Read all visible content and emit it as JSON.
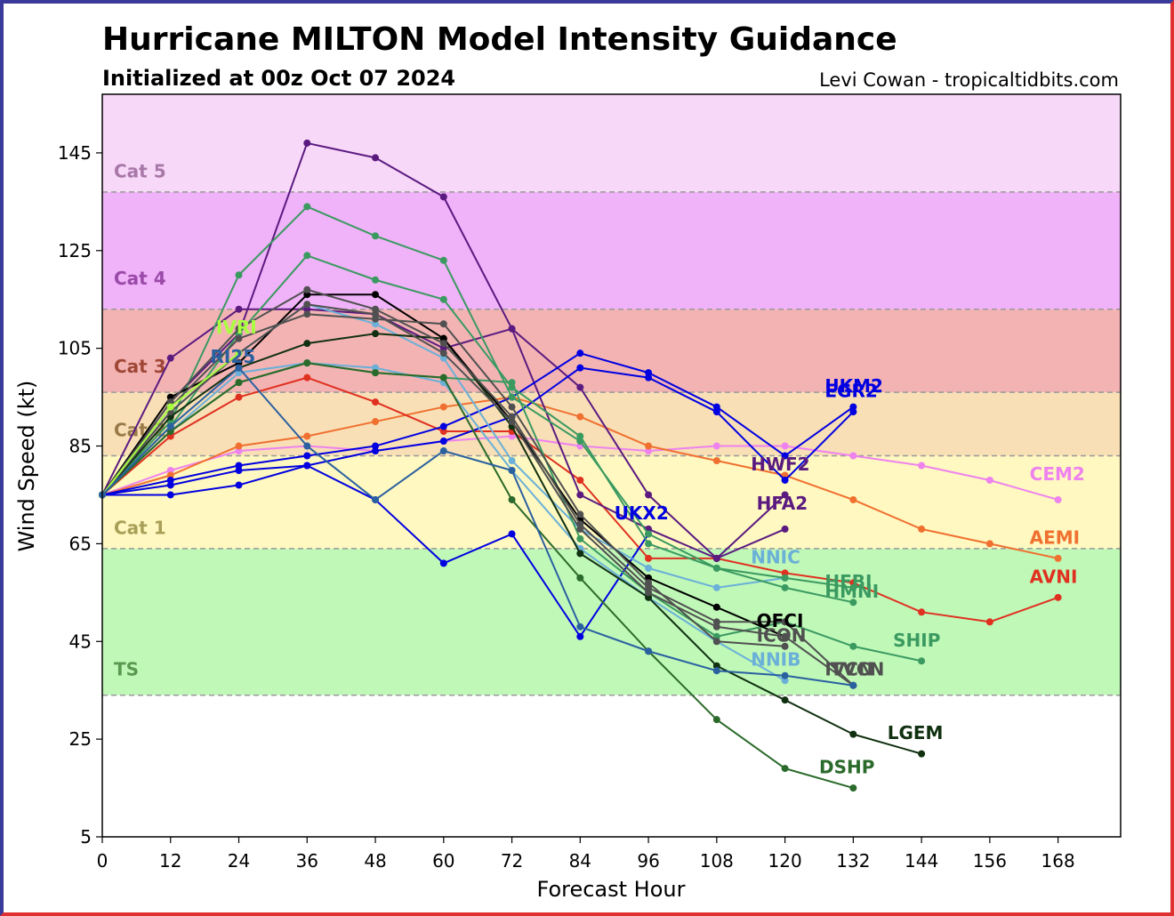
{
  "colors": {
    "frame_left": "#3a3a9a",
    "frame_right": "#e03030"
  },
  "header": {
    "title": "Hurricane MILTON Model Intensity Guidance",
    "subtitle": "Initialized at 00z Oct 07 2024",
    "credit": "Levi Cowan - tropicaltidbits.com"
  },
  "chart_data": {
    "type": "line",
    "title": "Hurricane MILTON Model Intensity Guidance",
    "subtitle": "Initialized at 00z Oct 07 2024",
    "xlabel": "Forecast Hour",
    "ylabel": "Wind Speed (kt)",
    "xlim": [
      0,
      179
    ],
    "ylim": [
      5,
      157
    ],
    "xticks": [
      0,
      12,
      24,
      36,
      48,
      60,
      72,
      84,
      96,
      108,
      120,
      132,
      144,
      156,
      168
    ],
    "yticks": [
      5,
      25,
      45,
      65,
      85,
      105,
      125,
      145
    ],
    "grid": false,
    "bands": [
      {
        "label": "TS",
        "from": 34,
        "to": 64,
        "color": "#c0f8b8",
        "text_color": "#5a9a50",
        "label_y": 38
      },
      {
        "label": "Cat 1",
        "from": 64,
        "to": 83,
        "color": "#fff8c0",
        "text_color": "#a8a058",
        "label_y": 67
      },
      {
        "label": "Cat 2",
        "from": 83,
        "to": 96,
        "color": "#f8dfb6",
        "text_color": "#9a7a48",
        "label_y": 87
      },
      {
        "label": "Cat 3",
        "from": 96,
        "to": 113,
        "color": "#f3b3b3",
        "text_color": "#a04838",
        "label_y": 100
      },
      {
        "label": "Cat 4",
        "from": 113,
        "to": 137,
        "color": "#f0b2f8",
        "text_color": "#9a4aa8",
        "label_y": 118
      },
      {
        "label": "Cat 5",
        "from": 137,
        "to": 157,
        "color": "#f8d8f8",
        "text_color": "#a878a8",
        "label_y": 140
      }
    ],
    "series": [
      {
        "name": "CEM2",
        "color": "#ee82ee",
        "label_at": [
          163,
          78
        ],
        "x": [
          0,
          12,
          24,
          36,
          48,
          60,
          72,
          84,
          96,
          108,
          120,
          132,
          144,
          156,
          168
        ],
        "y": [
          75,
          80,
          84,
          85,
          84,
          86,
          87,
          85,
          84,
          85,
          85,
          83,
          81,
          78,
          74
        ]
      },
      {
        "name": "AEMI",
        "color": "#f07030",
        "label_at": [
          163,
          65
        ],
        "x": [
          0,
          12,
          24,
          36,
          48,
          60,
          72,
          84,
          96,
          108,
          120,
          132,
          144,
          156,
          168
        ],
        "y": [
          75,
          79,
          85,
          87,
          90,
          93,
          95,
          91,
          85,
          82,
          79,
          74,
          68,
          65,
          62
        ]
      },
      {
        "name": "AVNI",
        "color": "#e03020",
        "label_at": [
          163,
          57
        ],
        "x": [
          0,
          12,
          24,
          36,
          48,
          60,
          72,
          84,
          96,
          108,
          120,
          132,
          144,
          156,
          168
        ],
        "y": [
          75,
          87,
          95,
          99,
          94,
          88,
          88,
          78,
          62,
          62,
          59,
          57,
          51,
          49,
          54
        ]
      },
      {
        "name": "HWF2",
        "color": "#5a1a80",
        "label_at": [
          114,
          80
        ],
        "x": [
          0,
          12,
          24,
          36,
          48,
          60,
          72,
          84,
          96,
          108,
          120
        ],
        "y": [
          75,
          103,
          113,
          113,
          112,
          105,
          109,
          97,
          75,
          62,
          75
        ]
      },
      {
        "name": "HFA2",
        "color": "#5a1a80",
        "label_at": [
          115,
          72
        ],
        "x": [
          0,
          12,
          24,
          36,
          48,
          60,
          72,
          84,
          96,
          108,
          120
        ],
        "y": [
          75,
          94,
          108,
          147,
          144,
          136,
          109,
          75,
          68,
          62,
          68
        ]
      },
      {
        "name": "UKM2",
        "color": "#0000e0",
        "label_at": [
          127,
          96
        ],
        "x": [
          0,
          12,
          24,
          36,
          48,
          60,
          72,
          84,
          96,
          108,
          120,
          132
        ],
        "y": [
          75,
          78,
          81,
          83,
          85,
          89,
          95,
          104,
          100,
          93,
          83,
          93
        ]
      },
      {
        "name": "EGR2",
        "color": "#0000e0",
        "label_at": [
          127,
          95
        ],
        "x": [
          0,
          12,
          24,
          36,
          48,
          60,
          72,
          84,
          96,
          108,
          120,
          132
        ],
        "y": [
          75,
          77,
          80,
          81,
          84,
          86,
          91,
          101,
          99,
          92,
          78,
          92
        ]
      },
      {
        "name": "UKX2",
        "color": "#0000e0",
        "label_at": [
          90,
          70
        ],
        "x": [
          0,
          12,
          24,
          36,
          48,
          60,
          72,
          84,
          96
        ],
        "y": [
          75,
          75,
          77,
          81,
          74,
          61,
          67,
          46,
          67
        ]
      },
      {
        "name": "NNIC",
        "color": "#6ab0d8",
        "label_at": [
          114,
          61
        ],
        "x": [
          0,
          12,
          24,
          36,
          48,
          60,
          72,
          84,
          96,
          108,
          120
        ],
        "y": [
          75,
          92,
          104,
          114,
          110,
          103,
          82,
          68,
          60,
          56,
          58
        ]
      },
      {
        "name": "NNIB",
        "color": "#6ab0d8",
        "label_at": [
          114,
          40
        ],
        "x": [
          0,
          12,
          24,
          36,
          48,
          60,
          72,
          84,
          96,
          108,
          120
        ],
        "y": [
          75,
          88,
          100,
          102,
          101,
          98,
          80,
          64,
          54,
          45,
          37
        ]
      },
      {
        "name": "HFBI",
        "color": "#3a9a60",
        "label_at": [
          127,
          56
        ],
        "x": [
          0,
          12,
          24,
          36,
          48,
          60,
          72,
          84,
          96,
          108,
          120,
          132
        ],
        "y": [
          75,
          90,
          120,
          134,
          128,
          123,
          95,
          86,
          67,
          60,
          58,
          56
        ]
      },
      {
        "name": "HMNI",
        "color": "#3a9a60",
        "label_at": [
          127,
          54
        ],
        "x": [
          0,
          12,
          24,
          36,
          48,
          60,
          72,
          84,
          96,
          108,
          120,
          132
        ],
        "y": [
          75,
          89,
          108,
          124,
          119,
          115,
          97,
          87,
          65,
          60,
          56,
          53
        ]
      },
      {
        "name": "SHIP",
        "color": "#3a9a60",
        "label_at": [
          139,
          44
        ],
        "x": [
          0,
          12,
          24,
          36,
          48,
          60,
          72,
          84,
          96,
          108,
          120,
          132,
          144
        ],
        "y": [
          75,
          88,
          98,
          102,
          100,
          99,
          98,
          66,
          55,
          46,
          49,
          44,
          41
        ]
      },
      {
        "name": "DSHP",
        "color": "#2a6a2a",
        "label_at": [
          126,
          18
        ],
        "x": [
          0,
          12,
          24,
          36,
          48,
          60,
          72,
          84,
          96,
          108,
          120,
          132
        ],
        "y": [
          75,
          88,
          98,
          102,
          100,
          99,
          74,
          58,
          43,
          29,
          19,
          15
        ]
      },
      {
        "name": "LGEM",
        "color": "#103010",
        "label_at": [
          138,
          25
        ],
        "x": [
          0,
          12,
          24,
          36,
          48,
          60,
          72,
          84,
          96,
          108,
          120,
          132,
          144
        ],
        "y": [
          75,
          91,
          101,
          106,
          108,
          107,
          89,
          63,
          54,
          40,
          33,
          26,
          22
        ]
      },
      {
        "name": "OFCI",
        "color": "#000000",
        "label_at": [
          115,
          48
        ],
        "x": [
          0,
          12,
          24,
          36,
          48,
          60,
          72,
          84,
          96,
          108,
          120
        ],
        "y": [
          75,
          95,
          102,
          116,
          116,
          107,
          90,
          70,
          58,
          52,
          46
        ]
      },
      {
        "name": "ICON",
        "color": "#505050",
        "label_at": [
          115,
          45
        ],
        "x": [
          0,
          12,
          24,
          36,
          48,
          60,
          72,
          84,
          96,
          108,
          120
        ],
        "y": [
          75,
          93,
          107,
          112,
          111,
          110,
          93,
          71,
          57,
          45,
          44
        ]
      },
      {
        "name": "IVCN",
        "color": "#505050",
        "label_at": [
          127,
          38
        ],
        "x": [
          0,
          12,
          24,
          36,
          48,
          60,
          72,
          84,
          96,
          108,
          120,
          132
        ],
        "y": [
          75,
          94,
          109,
          117,
          113,
          106,
          91,
          69,
          56,
          49,
          49,
          36
        ]
      },
      {
        "name": "TVCN",
        "color": "#505050",
        "label_at": [
          128,
          38
        ],
        "x": [
          0,
          12,
          24,
          36,
          48,
          60,
          72,
          84,
          96,
          108,
          120,
          132
        ],
        "y": [
          75,
          92,
          104,
          114,
          112,
          104,
          90,
          68,
          55,
          48,
          46,
          36
        ]
      },
      {
        "name": "IVRI",
        "color": "#a8ff40",
        "label_at": [
          20,
          108
        ],
        "x": [
          0,
          12,
          24
        ],
        "y": [
          75,
          93,
          104
        ]
      },
      {
        "name": "RI25",
        "color": "#2a60a0",
        "label_at": [
          19,
          102
        ],
        "x": [
          0,
          12,
          24,
          36,
          48,
          60,
          72,
          84,
          96,
          108,
          120,
          132
        ],
        "y": [
          75,
          89,
          101,
          85,
          74,
          84,
          80,
          48,
          43,
          39,
          38,
          36
        ]
      }
    ]
  }
}
